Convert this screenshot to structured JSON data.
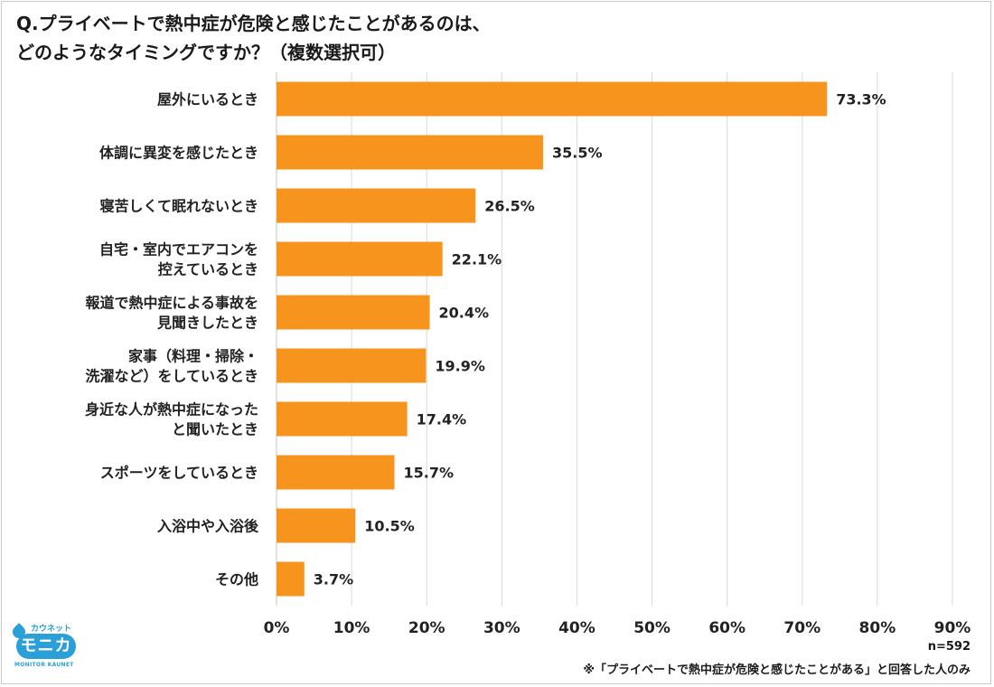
{
  "title_lines": [
    "Q.プライベートで熱中症が危険と感じたことがあるのは、",
    "どのようなタイミングですか？（複数選択可）"
  ],
  "sample_size": "n=592",
  "footnote": "※「プライベートで熱中症が危険と感じたことがある」と回答した人のみ",
  "logo": {
    "top_text": "カウネット",
    "main_text": "モニカ",
    "bottom_text": "MONITOR KAUNET"
  },
  "colors": {
    "bar": "#f7941d",
    "grid": "#d9d9d9",
    "text": "#222222",
    "logo": "#2a9fd8"
  },
  "chart_data": {
    "type": "bar",
    "orientation": "horizontal",
    "categories": [
      [
        "屋外にいるとき"
      ],
      [
        "体調に異変を感じたとき"
      ],
      [
        "寝苦しくて眠れないとき"
      ],
      [
        "自宅・室内でエアコンを",
        "控えているとき"
      ],
      [
        "報道で熱中症による事故を",
        "見聞きしたとき"
      ],
      [
        "家事（料理・掃除・",
        "洗濯など）をしているとき"
      ],
      [
        "身近な人が熱中症になった",
        "と聞いたとき"
      ],
      [
        "スポーツをしているとき"
      ],
      [
        "入浴中や入浴後"
      ],
      [
        "その他"
      ]
    ],
    "values": [
      73.3,
      35.5,
      26.5,
      22.1,
      20.4,
      19.9,
      17.4,
      15.7,
      10.5,
      3.7
    ],
    "value_labels": [
      "73.3%",
      "35.5%",
      "26.5%",
      "22.1%",
      "20.4%",
      "19.9%",
      "17.4%",
      "15.7%",
      "10.5%",
      "3.7%"
    ],
    "x_ticks": [
      0,
      10,
      20,
      30,
      40,
      50,
      60,
      70,
      80,
      90
    ],
    "x_tick_labels": [
      "0%",
      "10%",
      "20%",
      "30%",
      "40%",
      "50%",
      "60%",
      "70%",
      "80%",
      "90%"
    ],
    "xlim": [
      0,
      90
    ],
    "grid": true,
    "legend": false
  }
}
